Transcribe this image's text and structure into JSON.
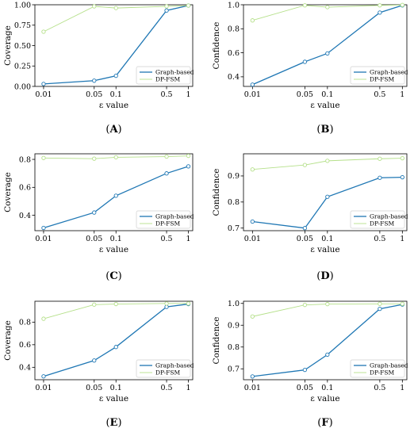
{
  "colors": {
    "graph": "#1f77b4",
    "dpfsm": "#b5e08a"
  },
  "chart_data": [
    {
      "type": "line",
      "panel": "(A)",
      "panel_letter": "A",
      "xlabel": "ε value",
      "ylabel": "Coverage",
      "x_scale": "log",
      "x": [
        0.01,
        0.05,
        0.1,
        0.5,
        1
      ],
      "x_tick_labels": [
        "0.01",
        "0.05",
        "0.1",
        "0.5",
        "1"
      ],
      "ylim": [
        0.0,
        1.0
      ],
      "y_ticks": [
        0.0,
        0.25,
        0.5,
        0.75,
        1.0
      ],
      "y_tick_labels": [
        "0.00",
        "0.25",
        "0.50",
        "0.75",
        "1.00"
      ],
      "series": [
        {
          "name": "Graph-based",
          "values": [
            0.03,
            0.07,
            0.13,
            0.93,
            0.99
          ]
        },
        {
          "name": "DP-FSM",
          "values": [
            0.67,
            0.98,
            0.96,
            0.98,
            0.99
          ]
        }
      ],
      "legend": "lower-right"
    },
    {
      "type": "line",
      "panel": "(B)",
      "panel_letter": "B",
      "xlabel": "ε value",
      "ylabel": "Confidence",
      "x_scale": "log",
      "x": [
        0.01,
        0.05,
        0.1,
        0.5,
        1
      ],
      "x_tick_labels": [
        "0.01",
        "0.05",
        "0.1",
        "0.5",
        "1"
      ],
      "ylim": [
        0.32,
        1.0
      ],
      "y_ticks": [
        0.4,
        0.6,
        0.8,
        1.0
      ],
      "y_tick_labels": [
        "0.4",
        "0.6",
        "0.8",
        "1.0"
      ],
      "series": [
        {
          "name": "Graph-based",
          "values": [
            0.335,
            0.525,
            0.595,
            0.935,
            0.995
          ]
        },
        {
          "name": "DP-FSM",
          "values": [
            0.87,
            0.995,
            0.98,
            0.995,
            0.998
          ]
        }
      ],
      "legend": "lower-right"
    },
    {
      "type": "line",
      "panel": "(C)",
      "panel_letter": "C",
      "xlabel": "ε value",
      "ylabel": "Coverage",
      "x_scale": "log",
      "x": [
        0.01,
        0.05,
        0.1,
        0.5,
        1
      ],
      "x_tick_labels": [
        "0.01",
        "0.05",
        "0.1",
        "0.5",
        "1"
      ],
      "ylim": [
        0.29,
        0.84
      ],
      "y_ticks": [
        0.4,
        0.6,
        0.8
      ],
      "y_tick_labels": [
        "0.4",
        "0.6",
        "0.8"
      ],
      "series": [
        {
          "name": "Graph-based",
          "values": [
            0.31,
            0.42,
            0.54,
            0.7,
            0.75
          ]
        },
        {
          "name": "DP-FSM",
          "values": [
            0.81,
            0.805,
            0.815,
            0.82,
            0.825
          ]
        }
      ],
      "legend": "lower-right"
    },
    {
      "type": "line",
      "panel": "(D)",
      "panel_letter": "D",
      "xlabel": "ε value",
      "ylabel": "Confidence",
      "x_scale": "log",
      "x": [
        0.01,
        0.05,
        0.1,
        0.5,
        1
      ],
      "x_tick_labels": [
        "0.01",
        "0.05",
        "0.1",
        "0.5",
        "1"
      ],
      "ylim": [
        0.69,
        0.985
      ],
      "y_ticks": [
        0.7,
        0.8,
        0.9
      ],
      "y_tick_labels": [
        "0.7",
        "0.8",
        "0.9"
      ],
      "series": [
        {
          "name": "Graph-based",
          "values": [
            0.725,
            0.7,
            0.82,
            0.893,
            0.895
          ]
        },
        {
          "name": "DP-FSM",
          "values": [
            0.925,
            0.942,
            0.958,
            0.966,
            0.968
          ]
        }
      ],
      "legend": "lower-right"
    },
    {
      "type": "line",
      "panel": "(E)",
      "panel_letter": "E",
      "xlabel": "ε value",
      "ylabel": "Coverage",
      "x_scale": "log",
      "x": [
        0.01,
        0.05,
        0.1,
        0.5,
        1
      ],
      "x_tick_labels": [
        "0.01",
        "0.05",
        "0.1",
        "0.5",
        "1"
      ],
      "ylim": [
        0.29,
        0.985
      ],
      "y_ticks": [
        0.4,
        0.6,
        0.8
      ],
      "y_tick_labels": [
        "0.4",
        "0.6",
        "0.8"
      ],
      "series": [
        {
          "name": "Graph-based",
          "values": [
            0.32,
            0.46,
            0.58,
            0.935,
            0.96
          ]
        },
        {
          "name": "DP-FSM",
          "values": [
            0.83,
            0.955,
            0.96,
            0.965,
            0.965
          ]
        }
      ],
      "legend": "lower-right"
    },
    {
      "type": "line",
      "panel": "(F)",
      "panel_letter": "F",
      "xlabel": "ε value",
      "ylabel": "Confidence",
      "x_scale": "log",
      "x": [
        0.01,
        0.05,
        0.1,
        0.5,
        1
      ],
      "x_tick_labels": [
        "0.01",
        "0.05",
        "0.1",
        "0.5",
        "1"
      ],
      "ylim": [
        0.65,
        1.01
      ],
      "y_ticks": [
        0.7,
        0.8,
        0.9,
        1.0
      ],
      "y_tick_labels": [
        "0.7",
        "0.8",
        "0.9",
        "1.0"
      ],
      "series": [
        {
          "name": "Graph-based",
          "values": [
            0.665,
            0.695,
            0.765,
            0.975,
            0.995
          ]
        },
        {
          "name": "DP-FSM",
          "values": [
            0.94,
            0.993,
            0.997,
            0.998,
            0.998
          ]
        }
      ],
      "legend": "lower-right"
    }
  ]
}
